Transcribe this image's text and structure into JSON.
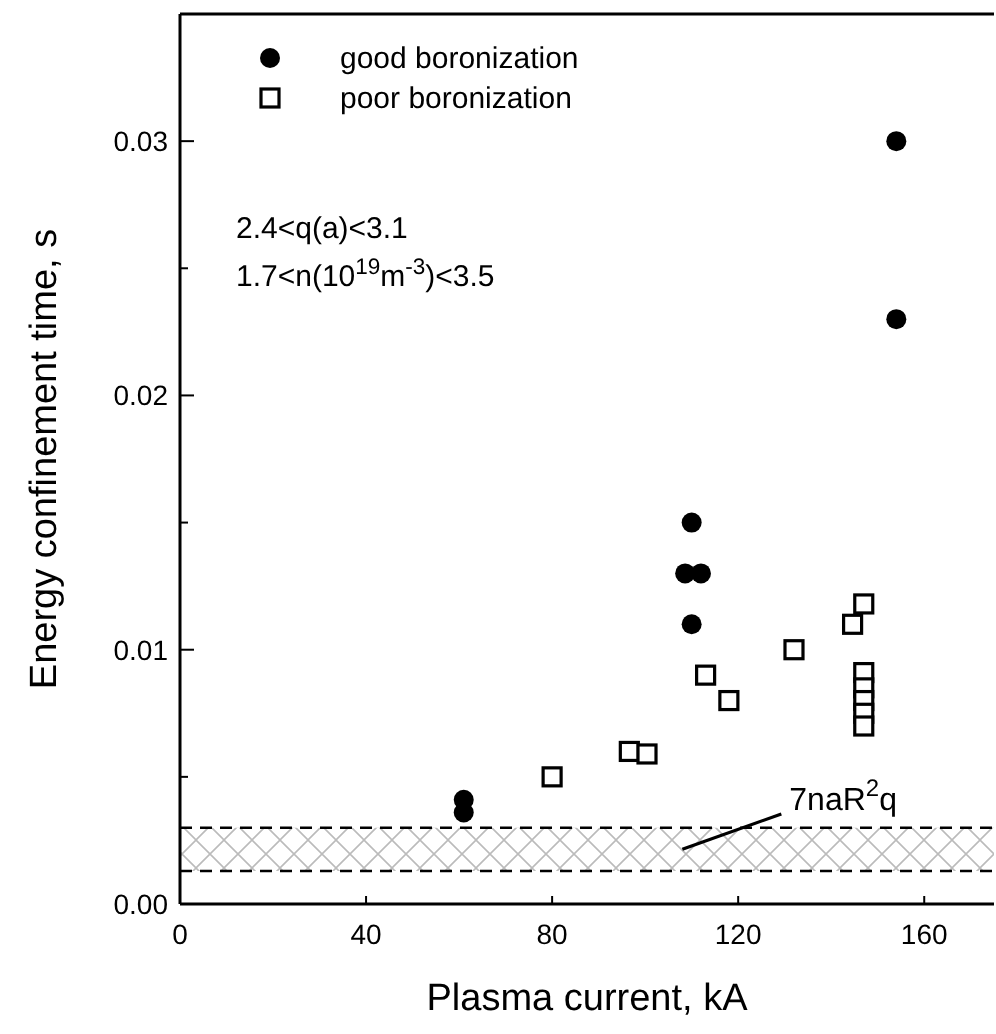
{
  "chart_data": {
    "type": "scatter",
    "xlabel": "Plasma current, kA",
    "ylabel": "Energy confinement time, s",
    "xlim": [
      0,
      175
    ],
    "ylim": [
      0,
      0.035
    ],
    "xticks": [
      0,
      40,
      80,
      120,
      160
    ],
    "yticks": [
      {
        "value": 0,
        "label": "0.00"
      },
      {
        "value": 0.005,
        "label": null
      },
      0.01,
      {
        "value": 0.015,
        "label": null
      },
      0.02,
      {
        "value": 0.025,
        "label": null
      },
      0.03
    ],
    "legend": "top left",
    "grid": false,
    "series": [
      {
        "name": "good boronization",
        "color": "#000000",
        "marker": "circle",
        "x": [
          154,
          154,
          110,
          108.6,
          112,
          110,
          61,
          61
        ],
        "values": [
          0.03,
          0.023,
          0.015,
          0.013,
          0.013,
          0.011,
          0.0036,
          0.0041
        ]
      },
      {
        "name": "poor boronization",
        "color": "#000000",
        "marker": "square",
        "x": [
          80,
          96.6,
          100.4,
          113,
          118,
          132,
          147,
          144.6,
          147,
          147,
          147,
          147,
          147
        ],
        "values": [
          0.005,
          0.006,
          0.0059,
          0.009,
          0.008,
          0.01,
          0.0118,
          0.011,
          0.0091,
          0.0085,
          0.008,
          0.0075,
          0.007
        ]
      }
    ],
    "bands": [
      {
        "axis": "y",
        "from": 0.0013,
        "to": 0.003,
        "label": "7naR$^{2}$q",
        "color": "#bbbbbb"
      }
    ],
    "ref_lines": [
      {
        "axis": "y",
        "value": 0.003,
        "color": "#000000",
        "line_style": "dashed"
      },
      {
        "axis": "y",
        "value": 0.0013,
        "color": "#000000",
        "line_style": "dashed"
      }
    ],
    "annotations": [
      "2.4<q(a)<3.1",
      "1.7<n(10$^{19}$m$^{-3}$)<3.5"
    ]
  }
}
